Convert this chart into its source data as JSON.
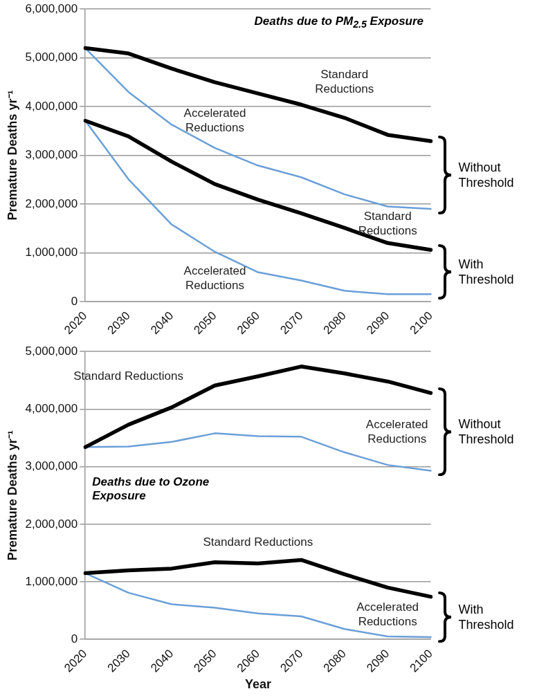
{
  "chart_data": [
    {
      "type": "line",
      "title": "Deaths due to PM$_{2.5}$ Exposure",
      "ylabel": "Premature Deaths yr⁻¹",
      "categories": [
        "2020",
        "2030",
        "2040",
        "2050",
        "2060",
        "2070",
        "2080",
        "2090",
        "2100"
      ],
      "series": [
        {
          "name": "Standard Reductions",
          "color": "#000000",
          "values": [
            5200000,
            5090000,
            4780000,
            4500000,
            4270000,
            4040000,
            3770000,
            3420000,
            3290000
          ]
        },
        {
          "name": "Accelerated Reductions",
          "color": "#6a9fd8",
          "values": [
            5200000,
            4300000,
            3630000,
            3150000,
            2790000,
            2550000,
            2200000,
            1950000,
            1900000
          ]
        },
        {
          "name": "Standard Reductions",
          "color": "#000000",
          "values": [
            3710000,
            3390000,
            2870000,
            2410000,
            2090000,
            1810000,
            1510000,
            1200000,
            1060000
          ]
        },
        {
          "name": "Accelerated Reductions",
          "color": "#6a9fd8",
          "values": [
            3710000,
            2510000,
            1580000,
            1020000,
            600000,
            430000,
            220000,
            150000,
            150000
          ]
        }
      ],
      "ylim": [
        0,
        6000000
      ],
      "yticks": [
        0,
        {
          "value": 1000000,
          "label": "1,000,000"
        },
        {
          "value": 2000000,
          "label": "2,000,000"
        },
        {
          "value": 3000000,
          "label": "3,000,000"
        },
        {
          "value": 4000000,
          "label": "4,000,000"
        },
        {
          "value": 5000000,
          "label": "5,000,000"
        },
        {
          "value": 6000000,
          "label": "6,000,000"
        }
      ],
      "grid": "y",
      "legend": false,
      "marker": "none",
      "annotations": [
        "Without Threshold",
        "With Threshold"
      ]
    },
    {
      "type": "line",
      "title": "Deaths due to Ozone Exposure",
      "ylabel": "Premature Deaths yr⁻¹",
      "xlabel": "Year",
      "categories": [
        "2020",
        "2030",
        "2040",
        "2050",
        "2060",
        "2070",
        "2080",
        "2090",
        "2100"
      ],
      "series": [
        {
          "name": "Standard Reductions",
          "color": "#000000",
          "values": [
            3340000,
            3730000,
            4030000,
            4410000,
            4570000,
            4740000,
            4620000,
            4480000,
            4280000
          ]
        },
        {
          "name": "Accelerated Reductions",
          "color": "#6a9fd8",
          "values": [
            3340000,
            3350000,
            3430000,
            3580000,
            3530000,
            3520000,
            3250000,
            3030000,
            2930000
          ]
        },
        {
          "name": "Standard Reductions",
          "color": "#000000",
          "values": [
            1150000,
            1200000,
            1230000,
            1340000,
            1320000,
            1380000,
            1130000,
            900000,
            740000
          ]
        },
        {
          "name": "Accelerated Reductions",
          "color": "#6a9fd8",
          "values": [
            1150000,
            810000,
            610000,
            550000,
            450000,
            400000,
            180000,
            50000,
            40000
          ]
        }
      ],
      "ylim": [
        0,
        5000000
      ],
      "yticks": [
        0,
        {
          "value": 1000000,
          "label": "1,000,000"
        },
        {
          "value": 2000000,
          "label": "2,000,000"
        },
        {
          "value": 3000000,
          "label": "3,000,000"
        },
        {
          "value": 4000000,
          "label": "4,000,000"
        },
        {
          "value": 5000000,
          "label": "5,000,000"
        }
      ],
      "grid": "y",
      "legend": false,
      "marker": "none",
      "annotations": [
        "Without Threshold",
        "With Threshold"
      ]
    }
  ]
}
